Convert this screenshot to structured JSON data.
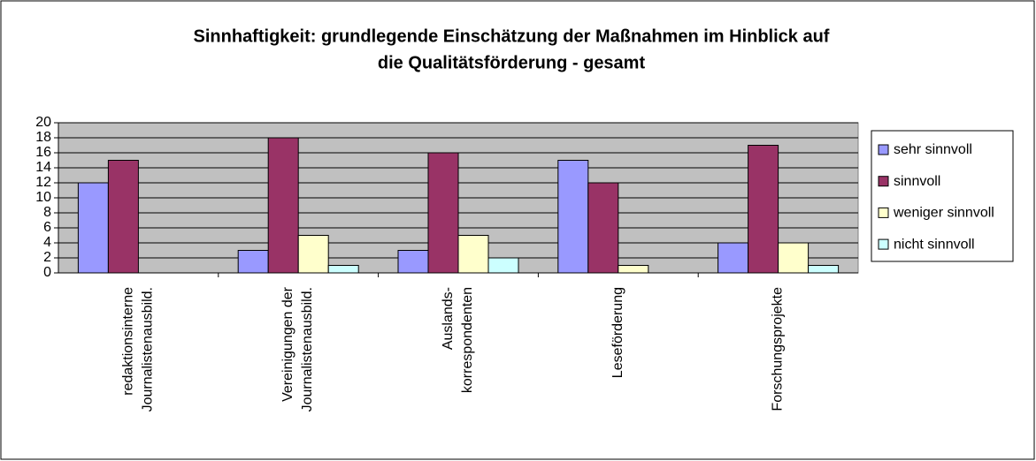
{
  "chart_data": {
    "type": "bar",
    "title": [
      "Sinnhaftigkeit: grundlegende Einschätzung der Maßnahmen im Hinblick auf",
      "die Qualitätsförderung - gesamt"
    ],
    "categories": [
      "redaktionsinterne\nJournalistenausbild.",
      "Vereinigungen der\nJournalistenausbild.",
      "Auslands-\nkorrespondenten",
      "Leseförderung",
      "Forschungsprojekte"
    ],
    "series": [
      {
        "name": "sehr sinnvoll",
        "color": "#9999ff",
        "values": [
          12,
          3,
          3,
          15,
          4
        ]
      },
      {
        "name": "sinnvoll",
        "color": "#993366",
        "values": [
          15,
          18,
          16,
          12,
          17
        ]
      },
      {
        "name": "weniger sinnvoll",
        "color": "#ffffcc",
        "values": [
          0,
          5,
          5,
          1,
          4
        ]
      },
      {
        "name": "nicht sinnvoll",
        "color": "#ccffff",
        "values": [
          0,
          1,
          2,
          0,
          1
        ]
      }
    ],
    "ylim": [
      0,
      20
    ],
    "yticks": [
      0,
      2,
      4,
      6,
      8,
      10,
      12,
      14,
      16,
      18,
      20
    ],
    "grid": true,
    "plot_background": "#c0c0c0",
    "legend": "right"
  }
}
